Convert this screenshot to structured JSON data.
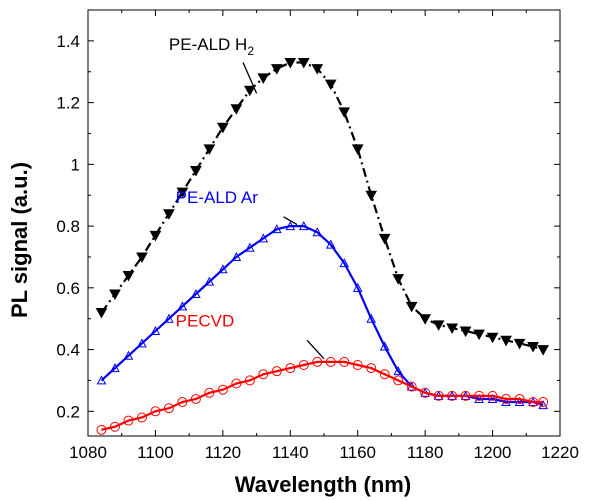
{
  "chart_data": {
    "type": "line",
    "xlabel": "Wavelength (nm)",
    "ylabel": "PL signal (a.u.)",
    "xlim": [
      1080,
      1220
    ],
    "ylim": [
      0.12,
      1.5
    ],
    "xticks": [
      1080,
      1100,
      1120,
      1140,
      1160,
      1180,
      1200,
      1220
    ],
    "yticks": [
      0.2,
      0.4,
      0.6,
      0.8,
      1,
      1.2,
      1.4
    ],
    "xtick_labels": [
      "1080",
      "1100",
      "1120",
      "1140",
      "1160",
      "1180",
      "1200",
      "1220"
    ],
    "ytick_labels": [
      "0.2",
      "0.4",
      "0.6",
      "0.8",
      "1",
      "1.2",
      "1.4"
    ],
    "grid": false,
    "series": [
      {
        "name": "PE-ALD H2",
        "color": "#000000",
        "marker": "triangle-down",
        "line_style": "dash-dot",
        "x": [
          1084,
          1088,
          1092,
          1096,
          1100,
          1104,
          1108,
          1112,
          1116,
          1120,
          1124,
          1128,
          1132,
          1136,
          1140,
          1144,
          1148,
          1152,
          1156,
          1160,
          1164,
          1168,
          1172,
          1176,
          1180,
          1184,
          1188,
          1192,
          1196,
          1200,
          1204,
          1208,
          1212,
          1215
        ],
        "y": [
          0.52,
          0.58,
          0.64,
          0.7,
          0.77,
          0.84,
          0.91,
          0.98,
          1.05,
          1.12,
          1.18,
          1.24,
          1.28,
          1.31,
          1.33,
          1.33,
          1.31,
          1.26,
          1.17,
          1.05,
          0.9,
          0.76,
          0.63,
          0.54,
          0.5,
          0.48,
          0.47,
          0.46,
          0.45,
          0.44,
          0.43,
          0.42,
          0.41,
          0.4
        ]
      },
      {
        "name": "PE-ALD Ar",
        "color": "#0000ff",
        "marker": "triangle-up-open",
        "line_style": "solid",
        "x": [
          1084,
          1088,
          1092,
          1096,
          1100,
          1104,
          1108,
          1112,
          1116,
          1120,
          1124,
          1128,
          1132,
          1136,
          1140,
          1144,
          1148,
          1152,
          1156,
          1160,
          1164,
          1168,
          1172,
          1176,
          1180,
          1184,
          1188,
          1192,
          1196,
          1200,
          1204,
          1208,
          1212,
          1215
        ],
        "y": [
          0.3,
          0.34,
          0.38,
          0.42,
          0.46,
          0.5,
          0.54,
          0.58,
          0.62,
          0.66,
          0.7,
          0.73,
          0.76,
          0.79,
          0.8,
          0.8,
          0.78,
          0.74,
          0.68,
          0.6,
          0.5,
          0.41,
          0.33,
          0.28,
          0.26,
          0.25,
          0.25,
          0.25,
          0.24,
          0.24,
          0.23,
          0.23,
          0.23,
          0.22
        ]
      },
      {
        "name": "PECVD",
        "color": "#ff0000",
        "marker": "circle-open",
        "line_style": "solid",
        "x": [
          1084,
          1088,
          1092,
          1096,
          1100,
          1104,
          1108,
          1112,
          1116,
          1120,
          1124,
          1128,
          1132,
          1136,
          1140,
          1144,
          1148,
          1152,
          1156,
          1160,
          1164,
          1168,
          1172,
          1176,
          1180,
          1184,
          1188,
          1192,
          1196,
          1200,
          1204,
          1208,
          1212,
          1215
        ],
        "y": [
          0.14,
          0.15,
          0.17,
          0.18,
          0.2,
          0.21,
          0.23,
          0.24,
          0.26,
          0.27,
          0.29,
          0.3,
          0.32,
          0.33,
          0.34,
          0.35,
          0.36,
          0.36,
          0.36,
          0.35,
          0.34,
          0.32,
          0.3,
          0.28,
          0.26,
          0.25,
          0.25,
          0.25,
          0.25,
          0.25,
          0.24,
          0.24,
          0.23,
          0.23
        ]
      }
    ],
    "annotations": [
      {
        "series": 0,
        "text": "PE-ALD H",
        "subscript": "2",
        "color": "#000000",
        "x": 1126,
        "y": 1.255
      },
      {
        "series": 1,
        "text": "PE-ALD Ar",
        "color": "#0000ff",
        "x": 1138,
        "y": 0.79
      },
      {
        "series": 2,
        "text": "PECVD",
        "color": "#ff0000",
        "x": 1145,
        "y": 0.36
      }
    ]
  }
}
